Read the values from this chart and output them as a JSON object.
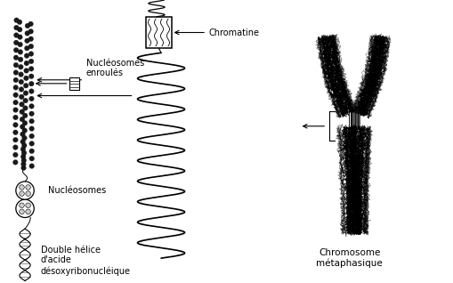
{
  "bg_color": "#ffffff",
  "fig_width": 5.1,
  "fig_height": 3.18,
  "dpi": 100,
  "labels": {
    "nucleosomes_enroules": "Nucléosomes\nenroulés",
    "nucleosomes": "Nucléosomes",
    "double_helice": "Double hélice\nd'acide\ndésoxyribonucléique",
    "chromatine": "Chromatine",
    "chromosome": "Chromosome\nmétaphasique"
  },
  "text_fontsize": 7,
  "label_color": "#000000"
}
